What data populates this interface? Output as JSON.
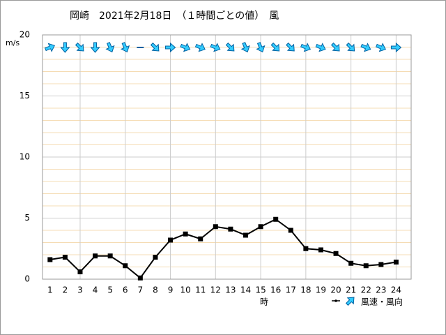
{
  "chart_data": {
    "type": "line",
    "title": "岡崎　2021年2月18日　（１時間ごとの値）　風",
    "y_axis_label": "m/s",
    "x_axis_label": "時",
    "categories": [
      "1",
      "2",
      "3",
      "4",
      "5",
      "6",
      "7",
      "8",
      "9",
      "10",
      "11",
      "12",
      "13",
      "14",
      "15",
      "16",
      "17",
      "18",
      "19",
      "20",
      "21",
      "22",
      "23",
      "24"
    ],
    "series": [
      {
        "name": "風速・風向",
        "color": "#000000",
        "values": [
          1.6,
          1.8,
          0.6,
          1.9,
          1.9,
          1.1,
          0.1,
          1.8,
          3.2,
          3.7,
          3.3,
          4.3,
          4.1,
          3.6,
          4.3,
          4.9,
          4.0,
          2.5,
          2.4,
          2.1,
          1.3,
          1.1,
          1.2,
          1.4
        ],
        "direction_bearings": [
          67.5,
          180,
          135,
          180,
          157.5,
          157.5,
          null,
          135,
          90,
          112.5,
          112.5,
          112.5,
          135,
          157.5,
          157.5,
          135,
          135,
          112.5,
          112.5,
          135,
          135,
          112.5,
          112.5,
          90
        ],
        "arrow_color": "#33ccff"
      }
    ],
    "ylim": [
      0,
      20
    ],
    "yticks": [
      0,
      5,
      10,
      15,
      20
    ],
    "yminorticks": [
      1,
      2,
      3,
      4,
      6,
      7,
      8,
      9,
      11,
      12,
      13,
      14,
      16,
      17,
      18,
      19
    ],
    "vertical_grid_categories": [
      3,
      6,
      9,
      12,
      15,
      18,
      21,
      24
    ],
    "grid": true
  }
}
